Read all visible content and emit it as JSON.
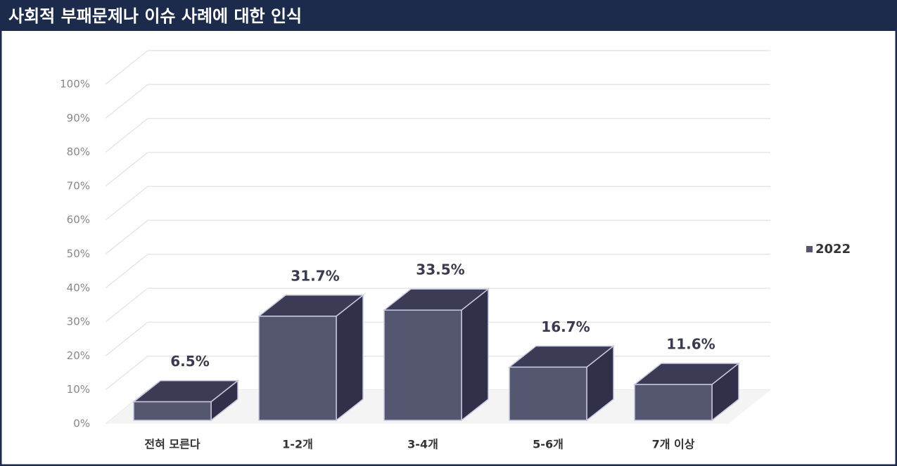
{
  "chart_data": {
    "type": "bar3d",
    "title": "사회적 부패문제나 이슈 사례에 대한 인식",
    "categories": [
      "전혀 모른다",
      "1-2개",
      "3-4개",
      "5-6개",
      "7개 이상"
    ],
    "series": [
      {
        "name": "2022",
        "color": "#555770",
        "values": [
          6.5,
          31.7,
          33.5,
          16.7,
          11.6
        ],
        "value_labels": [
          "6.5%",
          "31.7%",
          "33.5%",
          "16.7%",
          "11.6%"
        ]
      }
    ],
    "ylim": [
      0,
      100
    ],
    "yticks": [
      {
        "value": 0,
        "label": "0%"
      },
      {
        "value": 10,
        "label": "10%"
      },
      {
        "value": 20,
        "label": "20%"
      },
      {
        "value": 30,
        "label": "30%"
      },
      {
        "value": 40,
        "label": "40%"
      },
      {
        "value": 50,
        "label": "50%"
      },
      {
        "value": 60,
        "label": "60%"
      },
      {
        "value": 70,
        "label": "70%"
      },
      {
        "value": 80,
        "label": "80%"
      },
      {
        "value": 90,
        "label": "90%"
      },
      {
        "value": 100,
        "label": "100%"
      }
    ],
    "grid": true,
    "legend": "right"
  }
}
